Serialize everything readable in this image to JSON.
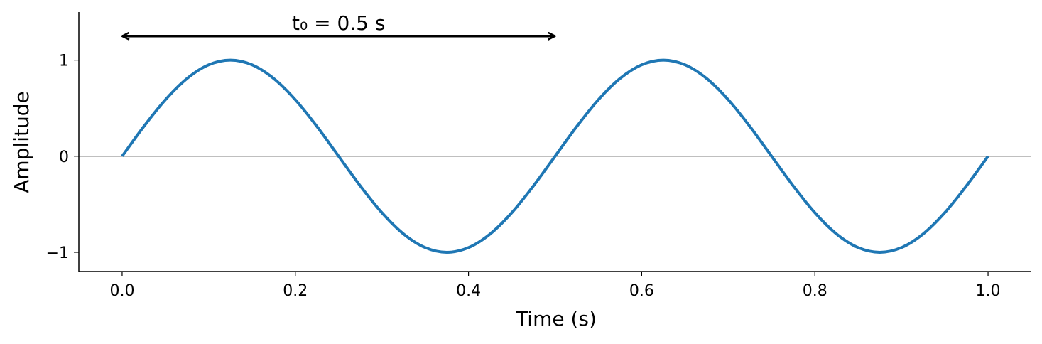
{
  "chart_data": {
    "type": "line",
    "x": [
      0,
      0.025,
      0.05,
      0.075,
      0.1,
      0.125,
      0.15,
      0.175,
      0.2,
      0.225,
      0.25,
      0.275,
      0.3,
      0.325,
      0.35,
      0.375,
      0.4,
      0.425,
      0.45,
      0.475,
      0.5,
      0.525,
      0.55,
      0.575,
      0.6,
      0.625,
      0.65,
      0.675,
      0.7,
      0.725,
      0.75,
      0.775,
      0.8,
      0.825,
      0.85,
      0.875,
      0.9,
      0.925,
      0.95,
      0.975,
      1
    ],
    "series": [
      {
        "color": "#1f77b4",
        "values": [
          0,
          0.309,
          0.588,
          0.809,
          0.951,
          1,
          0.951,
          0.809,
          0.588,
          0.309,
          0,
          -0.309,
          -0.588,
          -0.809,
          -0.951,
          -1,
          -0.951,
          -0.809,
          -0.588,
          -0.309,
          0,
          0.309,
          0.588,
          0.809,
          0.951,
          1,
          0.951,
          0.809,
          0.588,
          0.309,
          0,
          -0.309,
          -0.588,
          -0.809,
          -0.951,
          -1,
          -0.951,
          -0.809,
          -0.588,
          -0.309,
          0
        ]
      }
    ],
    "x_label": "Time (s)",
    "y_label": "Amplitude",
    "xlim": [
      -0.05,
      1.05
    ],
    "ylim": [
      -1.2,
      1.5
    ],
    "xticks": [
      {
        "value": 0,
        "label": "0.0"
      },
      {
        "value": 0.2,
        "label": "0.2"
      },
      {
        "value": 0.4,
        "label": "0.4"
      },
      {
        "value": 0.6,
        "label": "0.6"
      },
      {
        "value": 0.8,
        "label": "0.8"
      },
      {
        "value": 1,
        "label": "1.0"
      }
    ],
    "yticks": [
      {
        "value": -1,
        "label": "−1"
      },
      0,
      1
    ],
    "hline": 0,
    "annotation": {
      "text": "t₀ = 0.5 s",
      "x": [
        0,
        0.5
      ],
      "y": 1.25
    }
  }
}
